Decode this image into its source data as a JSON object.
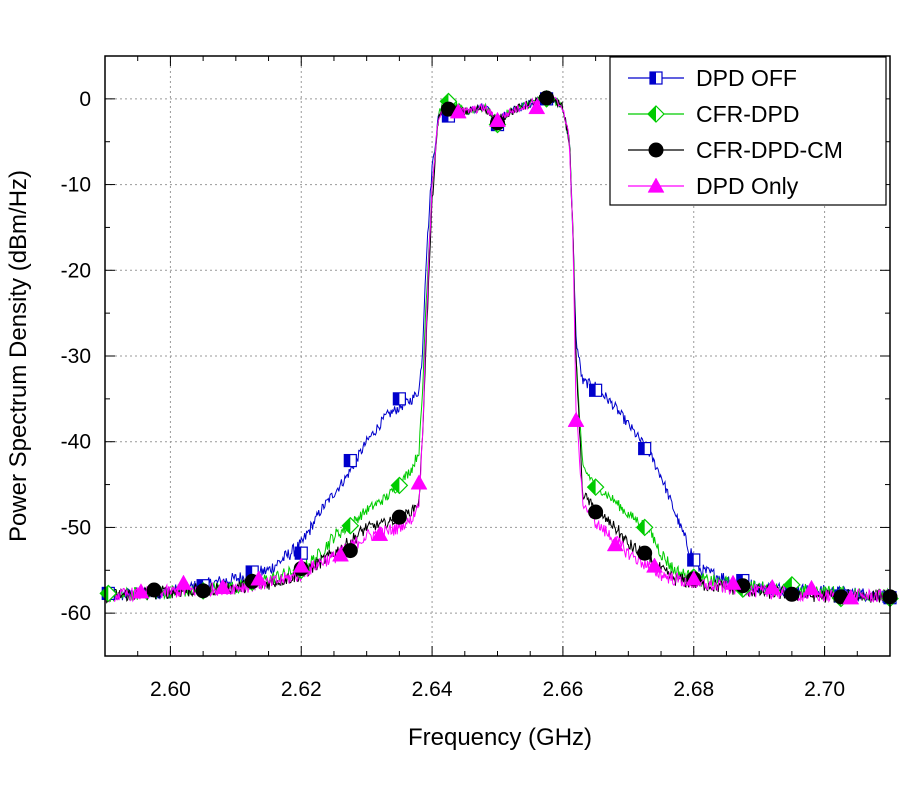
{
  "chart_data": {
    "type": "line",
    "title": "",
    "xlabel": "Frequency (GHz)",
    "ylabel": "Power Spectrum Density (dBm/Hz)",
    "xlim": [
      2.59,
      2.71
    ],
    "ylim": [
      -65,
      5
    ],
    "xticks": [
      2.6,
      2.62,
      2.64,
      2.66,
      2.68,
      2.7
    ],
    "xtick_labels": [
      "2.60",
      "2.62",
      "2.64",
      "2.66",
      "2.68",
      "2.70"
    ],
    "yticks": [
      0,
      -10,
      -20,
      -30,
      -40,
      -50,
      -60
    ],
    "ytick_labels": [
      "0",
      "-10",
      "-20",
      "-30",
      "-40",
      "-50",
      "-60"
    ],
    "grid": true,
    "legend_position": "top-right",
    "series": [
      {
        "name": "DPD OFF",
        "color": "#0000cc",
        "marker": "half-square",
        "line_x": [
          2.59,
          2.6,
          2.61,
          2.615,
          2.62,
          2.623,
          2.625,
          2.627,
          2.63,
          2.633,
          2.636,
          2.637,
          2.638,
          2.6385,
          2.639,
          2.64,
          2.641,
          2.642,
          2.645,
          2.648,
          2.65,
          2.652,
          2.655,
          2.658,
          2.66,
          2.661,
          2.6615,
          2.662,
          2.663,
          2.665,
          2.668,
          2.67,
          2.673,
          2.675,
          2.677,
          2.679,
          2.681,
          2.685,
          2.69,
          2.7,
          2.71
        ],
        "line_y": [
          -58,
          -57.5,
          -56,
          -55,
          -52,
          -48,
          -46,
          -44,
          -40,
          -37,
          -35.5,
          -35,
          -34,
          -30,
          -20,
          -8,
          -2,
          -1,
          -1.5,
          -1,
          -2.5,
          -1.5,
          -0.5,
          0.3,
          -1,
          -5,
          -15,
          -28,
          -33,
          -33.5,
          -36,
          -38,
          -41,
          -44,
          -48,
          -52,
          -55,
          -56,
          -57,
          -57.5,
          -58
        ],
        "marker_x": [
          2.5905,
          2.605,
          2.6125,
          2.62,
          2.6275,
          2.635,
          2.6425,
          2.65,
          2.6575,
          2.665,
          2.6725,
          2.68,
          2.6875,
          2.695,
          2.7025,
          2.71
        ],
        "marker_y": [
          -57.7,
          -56.8,
          -55.2,
          -53,
          -42.2,
          -35,
          -2,
          -3,
          0,
          -34,
          -40.8,
          -53.8,
          -56.2,
          -57.5,
          -58,
          -58.2
        ]
      },
      {
        "name": "CFR-DPD",
        "color": "#00cc00",
        "marker": "half-diamond",
        "line_x": [
          2.59,
          2.6,
          2.61,
          2.615,
          2.62,
          2.623,
          2.625,
          2.627,
          2.63,
          2.633,
          2.635,
          2.637,
          2.638,
          2.6385,
          2.639,
          2.64,
          2.641,
          2.642,
          2.645,
          2.648,
          2.65,
          2.652,
          2.655,
          2.658,
          2.66,
          2.661,
          2.6615,
          2.662,
          2.663,
          2.665,
          2.668,
          2.67,
          2.673,
          2.675,
          2.677,
          2.68,
          2.685,
          2.69,
          2.7,
          2.71
        ],
        "line_y": [
          -58,
          -57.5,
          -57,
          -56,
          -55,
          -53,
          -51,
          -50,
          -48,
          -46.5,
          -45,
          -43,
          -41,
          -35,
          -25,
          -10,
          -2,
          0,
          -1.5,
          -1,
          -2.5,
          -1.5,
          -0.5,
          0.3,
          -1,
          -5,
          -15,
          -30,
          -43,
          -45,
          -47,
          -48.5,
          -50,
          -53,
          -55,
          -56,
          -56.5,
          -57,
          -57.5,
          -58
        ],
        "marker_x": [
          2.5905,
          2.605,
          2.6125,
          2.62,
          2.6275,
          2.635,
          2.6425,
          2.65,
          2.6575,
          2.665,
          2.6725,
          2.68,
          2.6875,
          2.695,
          2.7025,
          2.71
        ],
        "marker_y": [
          -57.7,
          -57.4,
          -56.4,
          -55,
          -49.8,
          -45.1,
          -0.3,
          -3,
          0,
          -45.3,
          -50,
          -55.8,
          -57.2,
          -56.7,
          -58.3,
          -58.3
        ]
      },
      {
        "name": "CFR-DPD-CM",
        "color": "#000000",
        "marker": "circle",
        "line_x": [
          2.59,
          2.6,
          2.61,
          2.615,
          2.62,
          2.623,
          2.625,
          2.627,
          2.63,
          2.633,
          2.635,
          2.637,
          2.638,
          2.6385,
          2.639,
          2.64,
          2.641,
          2.642,
          2.645,
          2.648,
          2.65,
          2.652,
          2.655,
          2.658,
          2.66,
          2.661,
          2.6615,
          2.662,
          2.663,
          2.665,
          2.668,
          2.67,
          2.673,
          2.675,
          2.677,
          2.68,
          2.685,
          2.69,
          2.7,
          2.71
        ],
        "line_y": [
          -58,
          -57.5,
          -57,
          -56.5,
          -55.5,
          -54,
          -53,
          -52,
          -50,
          -49.5,
          -49,
          -48,
          -47,
          -40,
          -30,
          -12,
          -2,
          -1,
          -1.5,
          -1,
          -2.5,
          -1.5,
          -0.5,
          0.3,
          -1,
          -5,
          -15,
          -30,
          -46,
          -48,
          -50,
          -52,
          -53.5,
          -55,
          -56,
          -56.5,
          -57,
          -57.5,
          -58,
          -58
        ],
        "marker_x": [
          2.5975,
          2.605,
          2.6125,
          2.62,
          2.6275,
          2.635,
          2.6425,
          2.65,
          2.6575,
          2.665,
          2.6725,
          2.68,
          2.6875,
          2.695,
          2.7025,
          2.71
        ],
        "marker_y": [
          -57.3,
          -57.4,
          -56.3,
          -54.8,
          -52.7,
          -48.8,
          -1.2,
          -2.8,
          0.1,
          -48.2,
          -53,
          -56,
          -56.8,
          -57.8,
          -58.1,
          -58.1
        ]
      },
      {
        "name": "DPD Only",
        "color": "#ff00ff",
        "marker": "triangle",
        "line_x": [
          2.59,
          2.6,
          2.61,
          2.615,
          2.62,
          2.623,
          2.625,
          2.627,
          2.63,
          2.633,
          2.635,
          2.637,
          2.638,
          2.6385,
          2.639,
          2.64,
          2.641,
          2.642,
          2.645,
          2.648,
          2.65,
          2.652,
          2.655,
          2.658,
          2.66,
          2.661,
          2.6615,
          2.662,
          2.663,
          2.665,
          2.668,
          2.67,
          2.673,
          2.675,
          2.677,
          2.68,
          2.685,
          2.69,
          2.7,
          2.71
        ],
        "line_y": [
          -58,
          -57.5,
          -57,
          -56.5,
          -55.5,
          -54,
          -53.5,
          -52.5,
          -51,
          -50.5,
          -50,
          -49,
          -47,
          -40,
          -28,
          -10,
          -2,
          -1,
          -1.5,
          -1,
          -2.5,
          -1.5,
          -0.5,
          0.3,
          -1,
          -5,
          -15,
          -36,
          -47,
          -49.5,
          -51.5,
          -53,
          -54.5,
          -55.5,
          -56,
          -56.5,
          -57,
          -57.5,
          -58,
          -58
        ],
        "marker_x": [
          2.5955,
          2.602,
          2.608,
          2.6135,
          2.62,
          2.626,
          2.632,
          2.638,
          2.644,
          2.65,
          2.656,
          2.662,
          2.668,
          2.674,
          2.68,
          2.686,
          2.692,
          2.698,
          2.704
        ],
        "marker_y": [
          -57.5,
          -56.5,
          -57,
          -56,
          -54.5,
          -53.2,
          -50.8,
          -44.8,
          -1.5,
          -2.5,
          -1,
          -37.5,
          -52,
          -54.5,
          -56,
          -56.5,
          -57,
          -57.1,
          -58.2
        ]
      }
    ]
  }
}
